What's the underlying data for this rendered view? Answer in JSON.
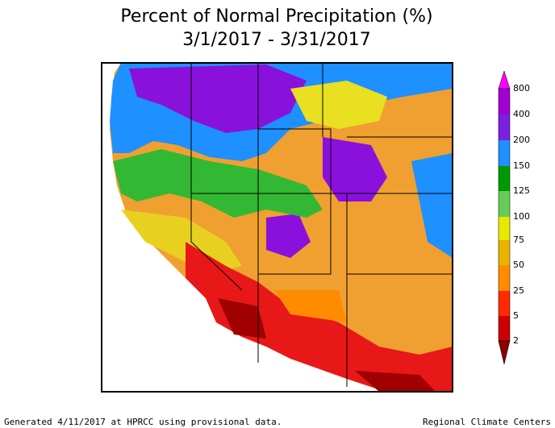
{
  "header": {
    "title": "Percent of Normal Precipitation (%)",
    "subtitle": "3/1/2017 - 3/31/2017"
  },
  "legend": {
    "labels": [
      "800",
      "400",
      "200",
      "150",
      "125",
      "100",
      "75",
      "50",
      "25",
      "5",
      "2"
    ]
  },
  "footer": {
    "left": "Generated 4/11/2017 at HPRCC using provisional data.",
    "right": "Regional Climate Centers"
  }
}
